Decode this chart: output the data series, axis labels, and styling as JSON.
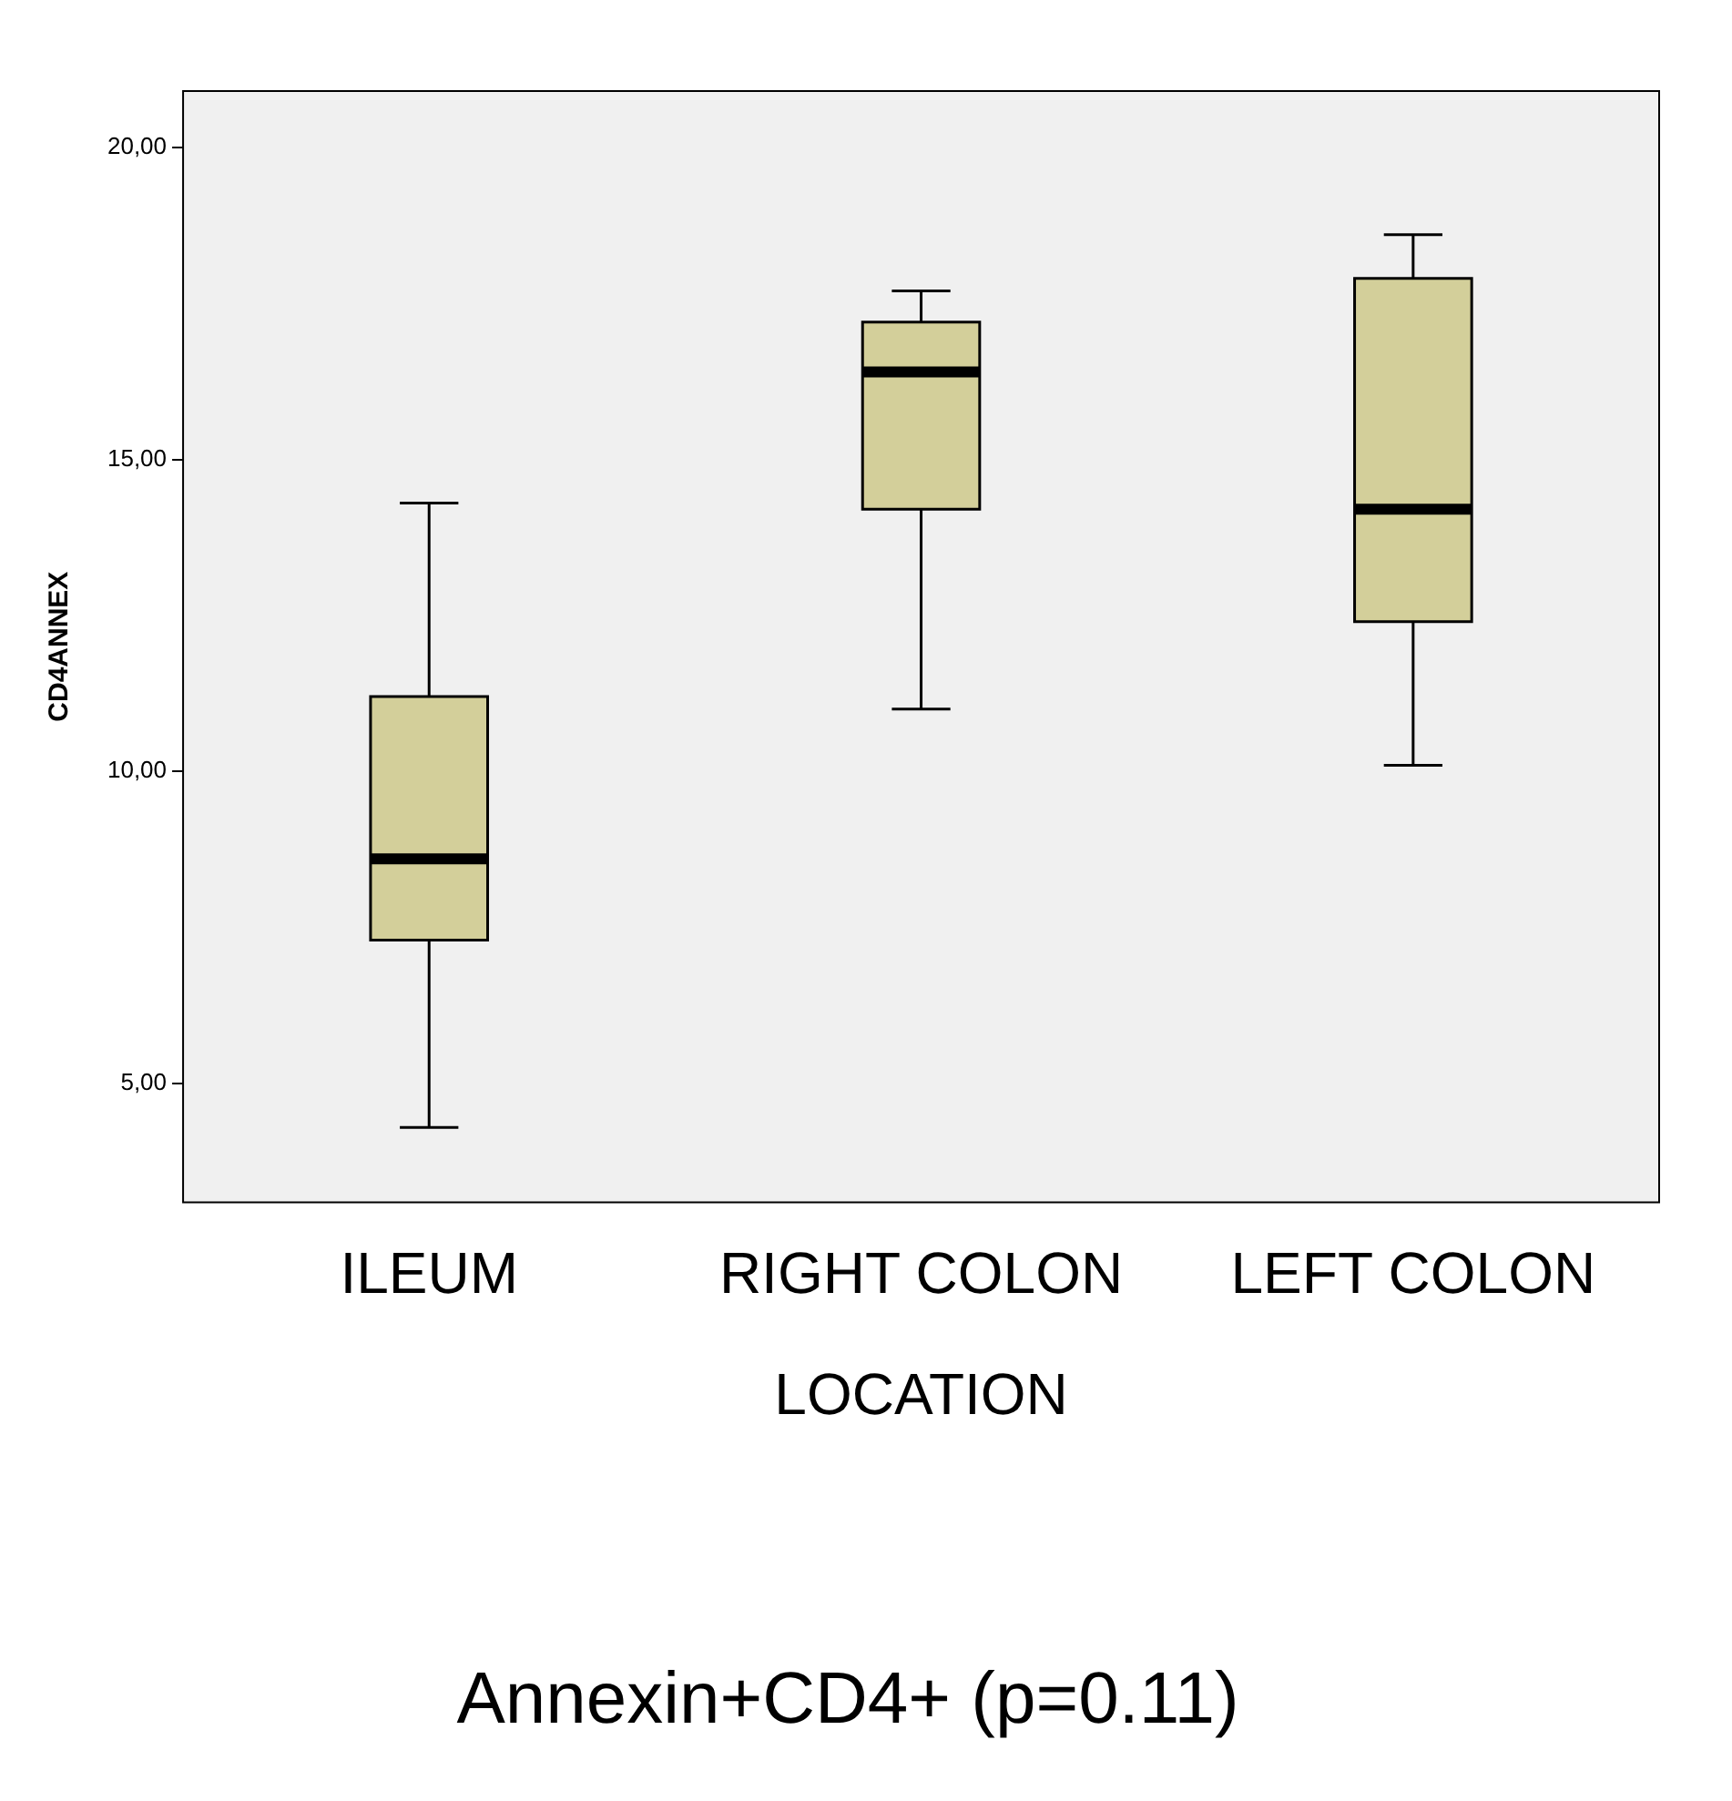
{
  "chart_data": {
    "type": "box",
    "title": "Annexin+CD4+ (p=0.11)",
    "xlabel": "LOCATION",
    "ylabel": "CD4ANNEX",
    "categories": [
      "ILEUM",
      "RIGHT COLON",
      "LEFT COLON"
    ],
    "color": "#d3cf9a",
    "boxes": [
      {
        "low": 4.3,
        "q1": 7.3,
        "median": 8.6,
        "q3": 11.2,
        "high": 14.3
      },
      {
        "low": 11.0,
        "q1": 14.2,
        "median": 16.4,
        "q3": 17.2,
        "high": 17.7
      },
      {
        "low": 10.1,
        "q1": 12.4,
        "median": 14.2,
        "q3": 17.9,
        "high": 18.6
      }
    ],
    "ylim": [
      3.1,
      20.9
    ],
    "yticks": [
      {
        "value": 5,
        "label": "5,00"
      },
      {
        "value": 10,
        "label": "10,00"
      },
      {
        "value": 15,
        "label": "15,00"
      },
      {
        "value": 20,
        "label": "20,00"
      }
    ],
    "grid": false,
    "legend": false
  }
}
